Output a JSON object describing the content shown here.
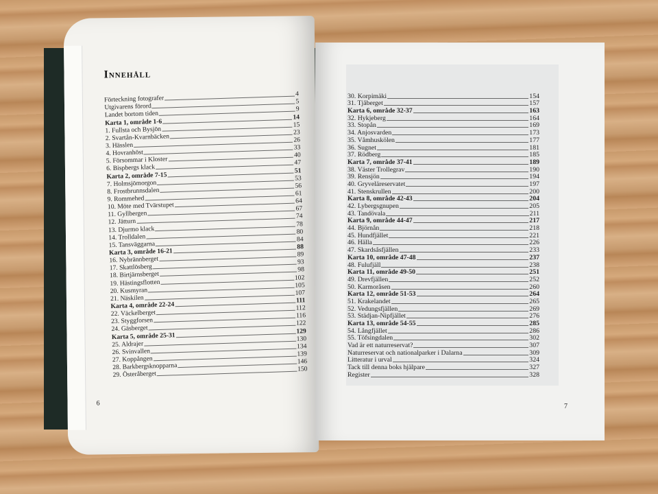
{
  "left_page": {
    "title": "Innehåll",
    "folio": "6",
    "entries": [
      {
        "label": "Förteckning fotografer",
        "page": "4"
      },
      {
        "label": "Utgivarens förord",
        "page": "5"
      },
      {
        "label": "Landet bortom tiden",
        "page": "9"
      },
      {
        "label": "Karta 1, område 1-6",
        "page": "14",
        "bold": true
      },
      {
        "label": "1. Fullsta och Bysjön",
        "page": "15"
      },
      {
        "label": "2. Svartån-Kvarnbäcken",
        "page": "23"
      },
      {
        "label": "3. Hässlen",
        "page": "26"
      },
      {
        "label": "4. Hovranhöst",
        "page": "33"
      },
      {
        "label": "5. Försommar i Kloster",
        "page": "40"
      },
      {
        "label": "6. Bispbergs klack",
        "page": "47"
      },
      {
        "label": "Karta 2, område 7-15",
        "page": "51",
        "bold": true
      },
      {
        "label": "7. Holmsjömorgon",
        "page": "53"
      },
      {
        "label": "8. Frostbrunnsdalen",
        "page": "56"
      },
      {
        "label": "9. Rommehed",
        "page": "61"
      },
      {
        "label": "10. Möte med Tvärstupet",
        "page": "64"
      },
      {
        "label": "11. Gyllbergen",
        "page": "67"
      },
      {
        "label": "12. Jätturn",
        "page": "74"
      },
      {
        "label": "13. Djurmo klack",
        "page": "78"
      },
      {
        "label": "14. Trolldalen",
        "page": "80"
      },
      {
        "label": "15. Tansväggarna",
        "page": "84"
      },
      {
        "label": "Karta 3, område 16-21",
        "page": "88",
        "bold": true
      },
      {
        "label": "16. Nybrännberget",
        "page": "89"
      },
      {
        "label": "17. Skattlösberg",
        "page": "93"
      },
      {
        "label": "18. Birtjärnsberget",
        "page": "98"
      },
      {
        "label": "19. Hästingsflotten",
        "page": "102"
      },
      {
        "label": "20. Kusmyran",
        "page": "105"
      },
      {
        "label": "21. Näskilen",
        "page": "107"
      },
      {
        "label": "Karta 4, område 22-24",
        "page": "111",
        "bold": true
      },
      {
        "label": "22. Väckelberget",
        "page": "112"
      },
      {
        "label": "23. Styggforsen",
        "page": "116"
      },
      {
        "label": "24. Gäsberget",
        "page": "122"
      },
      {
        "label": "Karta 5, område 25-31",
        "page": "129",
        "bold": true
      },
      {
        "label": "25. Aldrajer",
        "page": "130"
      },
      {
        "label": "26. Svinvallen",
        "page": "134"
      },
      {
        "label": "27. Koppången",
        "page": "139"
      },
      {
        "label": "28. Barkbergsknopparna",
        "page": "146"
      },
      {
        "label": "29. Österåberget",
        "page": "150"
      }
    ]
  },
  "right_page": {
    "folio": "7",
    "entries": [
      {
        "label": "30. Korpimäki",
        "page": "154"
      },
      {
        "label": "31. Tjåberget",
        "page": "157"
      },
      {
        "label": "Karta 6, område 32-37",
        "page": "163",
        "bold": true
      },
      {
        "label": "32. Hykjeberg",
        "page": "164"
      },
      {
        "label": "33. Stopån",
        "page": "169"
      },
      {
        "label": "34. Anjosvarden",
        "page": "173"
      },
      {
        "label": "35. Våmhuskölen",
        "page": "177"
      },
      {
        "label": "36. Sugnet",
        "page": "181"
      },
      {
        "label": "37. Rödberg",
        "page": "185"
      },
      {
        "label": "Karta 7, område 37-41",
        "page": "189",
        "bold": true
      },
      {
        "label": "38. Väster Trollegrav",
        "page": "190"
      },
      {
        "label": "39. Rensjön",
        "page": "194"
      },
      {
        "label": "40. Gryveläreservatet",
        "page": "197"
      },
      {
        "label": "41. Stenskrullen",
        "page": "200"
      },
      {
        "label": "Karta 8, område 42-43",
        "page": "204",
        "bold": true
      },
      {
        "label": "42. Lybergsgnupen",
        "page": "205"
      },
      {
        "label": "43. Tandövala",
        "page": "211"
      },
      {
        "label": "Karta 9, område 44-47",
        "page": "217",
        "bold": true
      },
      {
        "label": "44. Björnån",
        "page": "218"
      },
      {
        "label": "45. Hundfjället",
        "page": "221"
      },
      {
        "label": "46. Hälla",
        "page": "226"
      },
      {
        "label": "47. Skardsåsfjällen",
        "page": "233"
      },
      {
        "label": "Karta 10, område 47-48",
        "page": "237",
        "bold": true
      },
      {
        "label": "48. Fulufjäll",
        "page": "238"
      },
      {
        "label": "Karta 11, område 49-50",
        "page": "251",
        "bold": true
      },
      {
        "label": "49. Drevfjällen",
        "page": "252"
      },
      {
        "label": "50. Karmoråsen",
        "page": "260"
      },
      {
        "label": "Karta 12, område 51-53",
        "page": "264",
        "bold": true
      },
      {
        "label": "51. Krakelandet",
        "page": "265"
      },
      {
        "label": "52. Vedungsfjällen",
        "page": "269"
      },
      {
        "label": "53. Städjan-Nipfjället",
        "page": "276"
      },
      {
        "label": "Karta 13, område 54-55",
        "page": "285",
        "bold": true
      },
      {
        "label": "54. Långfjället",
        "page": "286"
      },
      {
        "label": "55. Töfsingdalen",
        "page": "302"
      },
      {
        "label": "Vad är ett naturreservat?",
        "page": "307"
      },
      {
        "label": "Naturreservat och nationalparker i Dalarna",
        "page": "309"
      },
      {
        "label": "Litteratur i urval",
        "page": "324"
      },
      {
        "label": "Tack till denna boks hjälpare",
        "page": "327"
      },
      {
        "label": "Register",
        "page": "328"
      }
    ]
  }
}
